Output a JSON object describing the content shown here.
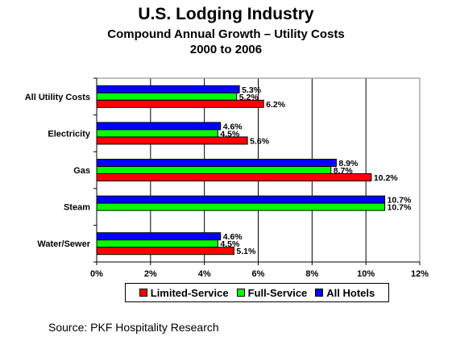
{
  "header": {
    "title": "U.S. Lodging Industry",
    "subtitle": "Compound Annual Growth – Utility Costs",
    "period": "2000 to 2006"
  },
  "source": "Source: PKF Hospitality Research",
  "colors": {
    "limited": "#ff0000",
    "full": "#00ff00",
    "all": "#0000ff"
  },
  "chart_data": {
    "type": "bar",
    "orientation": "horizontal",
    "categories": [
      "All Utility Costs",
      "Electricity",
      "Gas",
      "Steam",
      "Water/Sewer"
    ],
    "series": [
      {
        "name": "All Hotels",
        "values": [
          5.3,
          4.6,
          8.9,
          10.7,
          4.6
        ],
        "labels": [
          "5.3%",
          "4.6%",
          "8.9%",
          "10.7%",
          "4.6%"
        ],
        "color": "#0000ff"
      },
      {
        "name": "Full-Service",
        "values": [
          5.2,
          4.5,
          8.7,
          10.7,
          4.5
        ],
        "labels": [
          "5.2%",
          "4.5%",
          "8.7%",
          "10.7%",
          "4.5%"
        ],
        "color": "#00ff00"
      },
      {
        "name": "Limited-Service",
        "values": [
          6.2,
          5.6,
          10.2,
          null,
          5.1
        ],
        "labels": [
          "6.2%",
          "5.6%",
          "10.2%",
          "",
          "5.1%"
        ],
        "color": "#ff0000"
      }
    ],
    "xlim": [
      0,
      12
    ],
    "xticks": [
      0,
      2,
      4,
      6,
      8,
      10,
      12
    ],
    "xtick_labels": [
      "0%",
      "2%",
      "4%",
      "6%",
      "8%",
      "10%",
      "12%"
    ],
    "grid": true,
    "legend": {
      "position": "bottom",
      "entries": [
        "Limited-Service",
        "Full-Service",
        "All Hotels"
      ]
    }
  }
}
